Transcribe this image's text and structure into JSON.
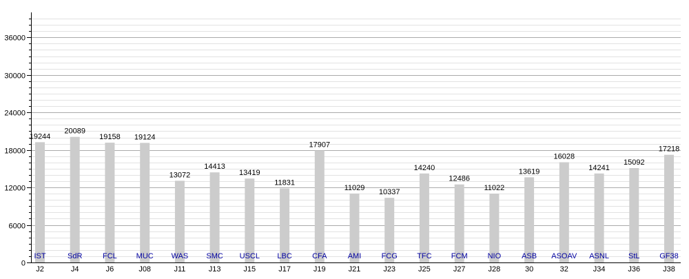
{
  "chart_data": {
    "type": "bar",
    "title": "",
    "xlabel": "",
    "ylabel": "",
    "ylim": [
      0,
      40000
    ],
    "y_ticks": [
      0,
      6000,
      12000,
      18000,
      24000,
      30000,
      36000
    ],
    "grid": true,
    "categories": [
      "J2",
      "J4",
      "J6",
      "J08",
      "J11",
      "J13",
      "J15",
      "J17",
      "J19",
      "J21",
      "J23",
      "J25",
      "J27",
      "J28",
      "30",
      "32",
      "J34",
      "J36",
      "J38"
    ],
    "bar_labels": [
      "IST",
      "SdR",
      "FCL",
      "MUC",
      "WAS",
      "SMC",
      "USCL",
      "LBC",
      "CFA",
      "AMI",
      "FCG",
      "TFC",
      "FCM",
      "NIO",
      "ASB",
      "ASOAV",
      "ASNL",
      "StL",
      "GF38"
    ],
    "values": [
      19244,
      20089,
      19158,
      19124,
      13072,
      14413,
      13419,
      11831,
      17907,
      11029,
      10337,
      14240,
      12486,
      11022,
      13619,
      16028,
      14241,
      15092,
      17218
    ],
    "colors": {
      "bar": "#cccccc",
      "bar_label": "#0000a0",
      "value_label": "#000000",
      "major_grid": "#aaaaaa",
      "minor_grid": "#e2e2e2",
      "axis": "#000000"
    }
  }
}
